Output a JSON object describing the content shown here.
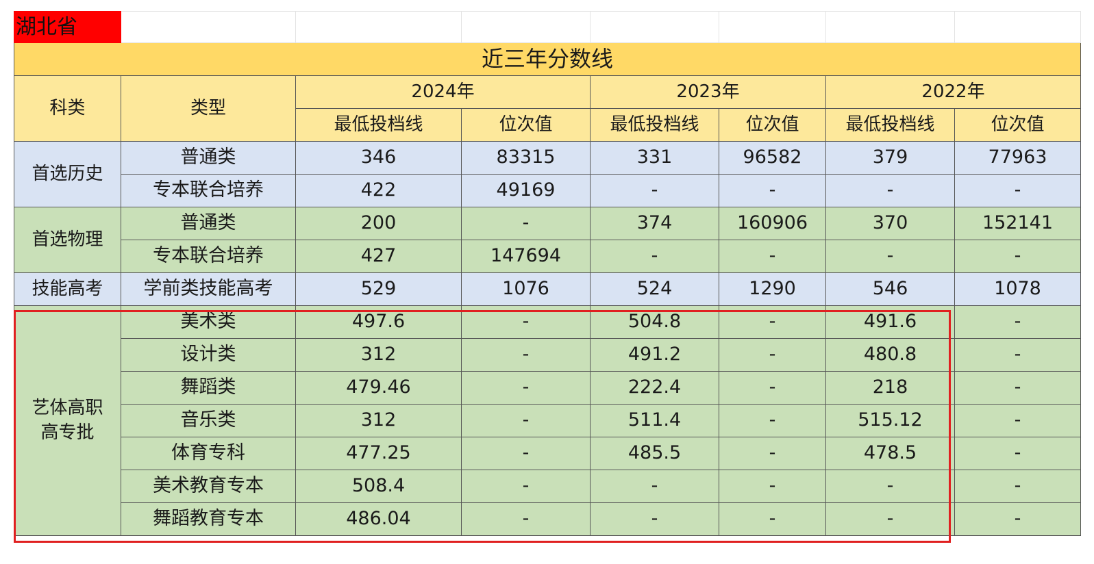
{
  "province": "湖北省",
  "title": "近三年分数线",
  "headers": {
    "category": "科类",
    "type": "类型",
    "years": [
      "2024年",
      "2023年",
      "2022年"
    ],
    "min_line": "最低投档线",
    "rank": "位次值"
  },
  "groups": [
    {
      "category": "首选历史",
      "color": "blue",
      "rows": [
        {
          "type": "普通类",
          "cells": [
            "346",
            "83315",
            "331",
            "96582",
            "379",
            "77963"
          ]
        },
        {
          "type": "专本联合培养",
          "cells": [
            "422",
            "49169",
            "-",
            "-",
            "-",
            "-"
          ]
        }
      ]
    },
    {
      "category": "首选物理",
      "color": "green",
      "rows": [
        {
          "type": "普通类",
          "cells": [
            "200",
            "-",
            "374",
            "160906",
            "370",
            "152141"
          ]
        },
        {
          "type": "专本联合培养",
          "cells": [
            "427",
            "147694",
            "-",
            "-",
            "-",
            "-"
          ]
        }
      ]
    },
    {
      "category": "技能高考",
      "color": "blue",
      "rows": [
        {
          "type": "学前类技能高考",
          "cells": [
            "529",
            "1076",
            "524",
            "1290",
            "546",
            "1078"
          ]
        }
      ]
    },
    {
      "category": "艺体高职高专批",
      "color": "green",
      "rows": [
        {
          "type": "美术类",
          "cells": [
            "497.6",
            "-",
            "504.8",
            "-",
            "491.6",
            "-"
          ]
        },
        {
          "type": "设计类",
          "cells": [
            "312",
            "-",
            "491.2",
            "-",
            "480.8",
            "-"
          ]
        },
        {
          "type": "舞蹈类",
          "cells": [
            "479.46",
            "-",
            "222.4",
            "-",
            "218",
            "-"
          ]
        },
        {
          "type": "音乐类",
          "cells": [
            "312",
            "-",
            "511.4",
            "-",
            "515.12",
            "-"
          ]
        },
        {
          "type": "体育专科",
          "cells": [
            "477.25",
            "-",
            "485.5",
            "-",
            "478.5",
            "-"
          ]
        },
        {
          "type": "美术教育专本",
          "cells": [
            "508.4",
            "-",
            "-",
            "-",
            "-",
            "-"
          ]
        },
        {
          "type": "舞蹈教育专本",
          "cells": [
            "486.04",
            "-",
            "-",
            "-",
            "-",
            "-"
          ]
        }
      ]
    }
  ],
  "colors": {
    "blue": "#d9e3f3",
    "green": "#c9e0b8",
    "title": "#ffd966",
    "header": "#fde89b",
    "highlight": "#e02020",
    "province": "#ff0000"
  }
}
